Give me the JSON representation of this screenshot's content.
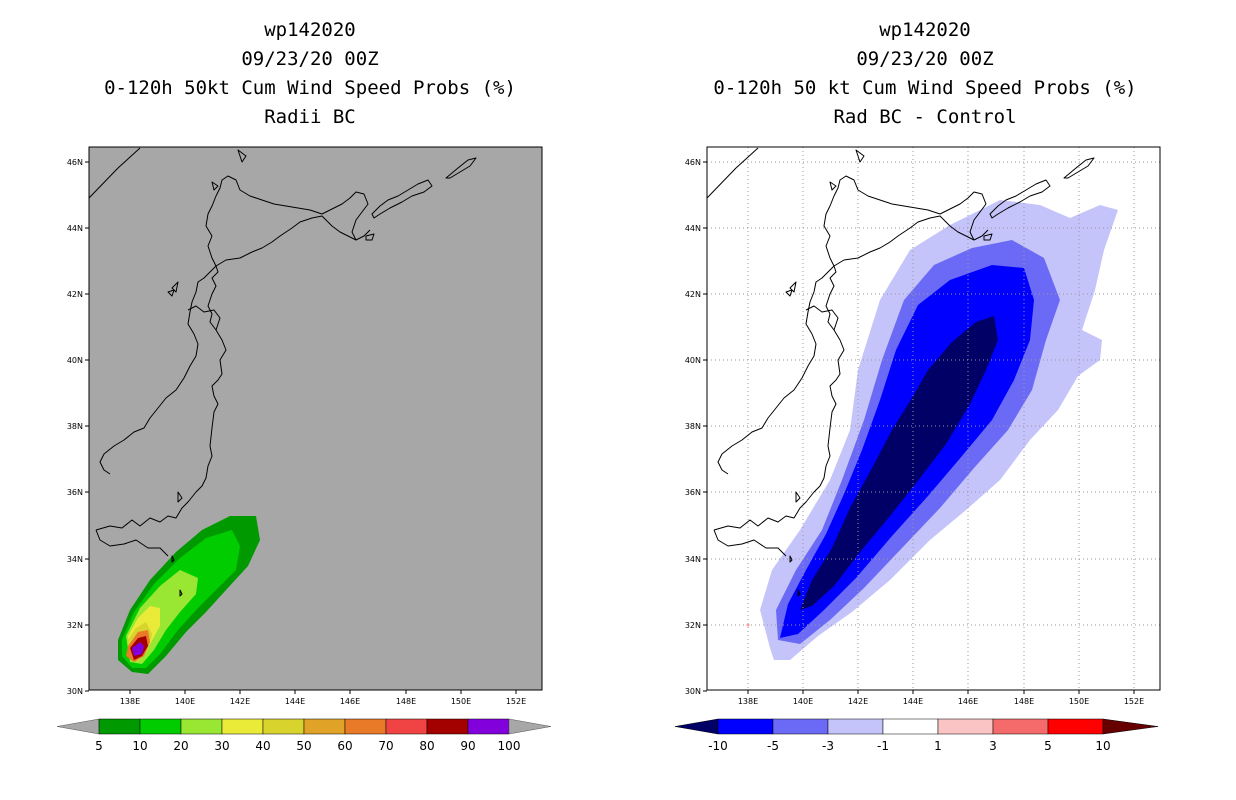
{
  "left_panel": {
    "title_lines": [
      "wp142020",
      "09/23/20 00Z",
      "0-120h 50kt Cum Wind Speed Probs (%)",
      "Radii BC"
    ],
    "lat_labels": [
      "46N",
      "44N",
      "42N",
      "40N",
      "38N",
      "36N",
      "34N",
      "32N",
      "30N"
    ],
    "lon_labels": [
      "138E",
      "140E",
      "142E",
      "144E",
      "146E",
      "148E",
      "150E",
      "152E"
    ],
    "background_color": "#a7a7a7",
    "colorbar": {
      "labels": [
        "5",
        "10",
        "20",
        "30",
        "40",
        "50",
        "60",
        "70",
        "80",
        "90",
        "100"
      ],
      "colors": [
        "#009900",
        "#00cc00",
        "#99e633",
        "#eaea38",
        "#d8d42d",
        "#e0a227",
        "#e87a28",
        "#f04444",
        "#a30000",
        "#8200dc"
      ]
    }
  },
  "right_panel": {
    "title_lines": [
      "wp142020",
      "09/23/20 00Z",
      "0-120h 50 kt Cum Wind Speed Probs (%)",
      "Rad BC - Control"
    ],
    "lat_labels": [
      "46N",
      "44N",
      "42N",
      "40N",
      "38N",
      "36N",
      "34N",
      "32N",
      "30N"
    ],
    "lon_labels": [
      "138E",
      "140E",
      "142E",
      "144E",
      "146E",
      "148E",
      "150E",
      "152E"
    ],
    "background_color": "#ffffff",
    "colorbar": {
      "labels": [
        "-10",
        "-5",
        "-3",
        "-1",
        "1",
        "3",
        "5",
        "10"
      ],
      "colors": [
        "#0000ff",
        "#6a6af6",
        "#c4c4fa",
        "#ffffff",
        "#fbc4c4",
        "#f56a6a",
        "#ff0000"
      ],
      "end_colors": [
        "#000066",
        "#660000"
      ]
    }
  },
  "contour_colors": {
    "p5": "#009900",
    "p10": "#00cc00",
    "p20": "#99e633",
    "p30": "#eaea38",
    "p40": "#d8d42d",
    "p50": "#e0a227",
    "p60": "#e87a28",
    "p70": "#f04444",
    "p80": "#a30000",
    "p100": "#8200dc",
    "d1": "#c4c4fa",
    "d3": "#6a6af6",
    "d5": "#0000ff",
    "d10": "#000066"
  }
}
